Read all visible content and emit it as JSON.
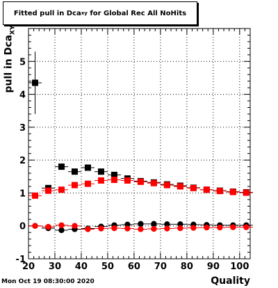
{
  "chart_data": {
    "type": "scatter",
    "title_main": "Fitted pull in Dca",
    "title_sub": "xy",
    "title_rest": " for Global Rec All NoHits",
    "ylabel_main": "pull in Dca",
    "ylabel_sub": "XY",
    "xlabel": "Quality",
    "xlim": [
      20,
      104
    ],
    "ylim": [
      -1,
      6
    ],
    "xticks": [
      "20",
      "30",
      "40",
      "50",
      "60",
      "70",
      "80",
      "90",
      "100"
    ],
    "yticks": [
      "-1",
      "0",
      "1",
      "2",
      "3",
      "4",
      "5"
    ],
    "grid": true,
    "series": [
      {
        "marker": "square",
        "color": "#000000",
        "x": [
          22.5,
          27.5,
          32.5,
          37.5,
          42.5,
          47.5,
          52.5,
          57.5,
          62.5,
          67.5,
          72.5,
          77.5,
          82.5,
          87.5,
          92.5,
          97.5,
          102.5
        ],
        "y": [
          4.35,
          1.15,
          1.8,
          1.65,
          1.77,
          1.65,
          1.55,
          1.44,
          1.36,
          1.32,
          1.26,
          1.22,
          1.16,
          1.1,
          1.07,
          1.04,
          1.02
        ],
        "yerr": [
          0.95,
          0.0,
          0.04,
          0.03,
          0.03,
          0.03,
          0.02,
          0.02,
          0.02,
          0.02,
          0.02,
          0.02,
          0.02,
          0.02,
          0.02,
          0.02,
          0.02
        ]
      },
      {
        "marker": "square",
        "color": "#ff0000",
        "x": [
          22.5,
          27.5,
          32.5,
          37.5,
          42.5,
          47.5,
          52.5,
          57.5,
          62.5,
          67.5,
          72.5,
          77.5,
          82.5,
          87.5,
          92.5,
          97.5,
          102.5
        ],
        "y": [
          0.92,
          1.07,
          1.1,
          1.24,
          1.28,
          1.38,
          1.4,
          1.38,
          1.34,
          1.3,
          1.24,
          1.2,
          1.15,
          1.1,
          1.06,
          1.03,
          1.01
        ],
        "yerr": [
          0.05,
          0.04,
          0.03,
          0.03,
          0.02,
          0.02,
          0.02,
          0.02,
          0.02,
          0.02,
          0.02,
          0.02,
          0.02,
          0.02,
          0.02,
          0.02,
          0.02
        ]
      },
      {
        "marker": "circle",
        "color": "#000000",
        "x": [
          22.5,
          27.5,
          32.5,
          37.5,
          42.5,
          47.5,
          52.5,
          57.5,
          62.5,
          67.5,
          72.5,
          77.5,
          82.5,
          87.5,
          92.5,
          97.5,
          102.5
        ],
        "y": [
          0.0,
          -0.07,
          -0.13,
          -0.1,
          -0.08,
          -0.02,
          0.02,
          0.04,
          0.06,
          0.06,
          0.05,
          0.05,
          0.04,
          0.03,
          0.02,
          0.02,
          0.02
        ],
        "yerr": [
          0.0,
          0.04,
          0.03,
          0.03,
          0.02,
          0.02,
          0.02,
          0.02,
          0.02,
          0.02,
          0.02,
          0.02,
          0.02,
          0.02,
          0.02,
          0.02,
          0.02
        ]
      },
      {
        "marker": "circle",
        "color": "#ff0000",
        "x": [
          22.5,
          27.5,
          32.5,
          37.5,
          42.5,
          47.5,
          52.5,
          57.5,
          62.5,
          67.5,
          72.5,
          77.5,
          82.5,
          87.5,
          92.5,
          97.5,
          102.5
        ],
        "y": [
          0.0,
          -0.03,
          0.02,
          0.0,
          -0.1,
          -0.08,
          -0.07,
          -0.08,
          -0.1,
          -0.09,
          -0.08,
          -0.07,
          -0.06,
          -0.05,
          -0.05,
          -0.04,
          -0.04
        ],
        "yerr": [
          0.04,
          0.04,
          0.03,
          0.03,
          0.02,
          0.02,
          0.02,
          0.02,
          0.02,
          0.02,
          0.02,
          0.02,
          0.02,
          0.02,
          0.02,
          0.02,
          0.02
        ]
      }
    ]
  },
  "footer": {
    "datestamp": "Mon Oct 19 08:30:00 2020"
  }
}
